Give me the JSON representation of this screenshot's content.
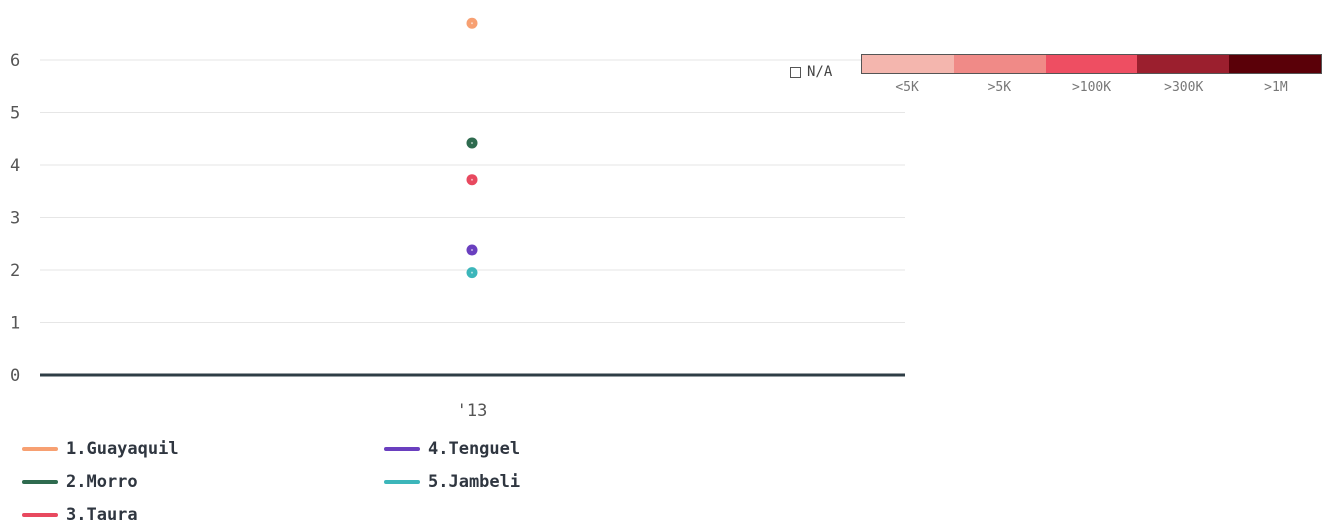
{
  "chart_data": {
    "type": "scatter",
    "categories": [
      "'13"
    ],
    "ylim": [
      0,
      6.8
    ],
    "y_ticks": [
      "0",
      "1",
      "2",
      "3",
      "4",
      "5",
      "6"
    ],
    "grid": true,
    "series": [
      {
        "name": "1.Guayaquil",
        "color": "#f7a072",
        "values": [
          6.7
        ]
      },
      {
        "name": "2.Morro",
        "color": "#2e6b4f",
        "values": [
          4.42
        ]
      },
      {
        "name": "3.Taura",
        "color": "#e8495f",
        "values": [
          3.72
        ]
      },
      {
        "name": "4.Tenguel",
        "color": "#6a3fbf",
        "values": [
          2.38
        ]
      },
      {
        "name": "5.Jambeli",
        "color": "#3cb6ba",
        "values": [
          1.95
        ]
      }
    ],
    "legend_placement": "bottom-left"
  },
  "color_scale": {
    "na_label": "N/A",
    "bins": [
      {
        "label": "<5K",
        "color": "#f4b6ae"
      },
      {
        "label": ">5K",
        "color": "#f08a87"
      },
      {
        "label": ">100K",
        "color": "#ee4e62"
      },
      {
        "label": ">300K",
        "color": "#9b1f2e"
      },
      {
        "label": ">1M",
        "color": "#5a0008"
      }
    ]
  }
}
